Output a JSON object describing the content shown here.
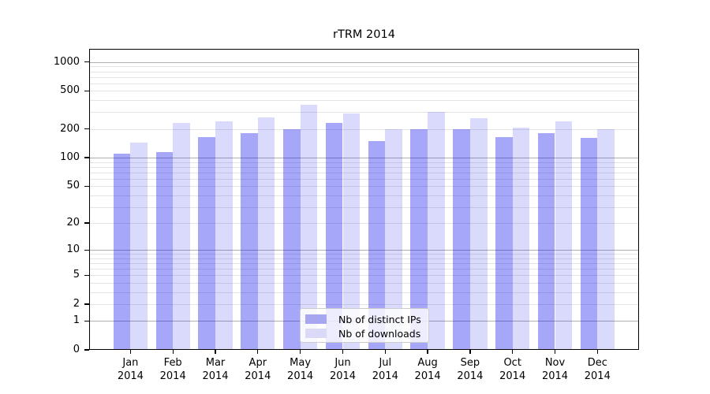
{
  "chart_data": {
    "type": "bar",
    "title": "rTRM 2014",
    "categories": [
      "Jan",
      "Feb",
      "Mar",
      "Apr",
      "May",
      "Jun",
      "Jul",
      "Aug",
      "Sep",
      "Oct",
      "Nov",
      "Dec"
    ],
    "category_year": "2014",
    "series": [
      {
        "name": "Nb of distinct IPs",
        "color": "#a6a6f1",
        "fill": "rgba(0,0,240,0.345)",
        "values": [
          110,
          115,
          165,
          180,
          200,
          230,
          150,
          200,
          200,
          165,
          180,
          160
        ]
      },
      {
        "name": "Nb of downloads",
        "color": "#dadaf8",
        "fill": "rgba(0,0,240,0.145)",
        "values": [
          145,
          230,
          240,
          265,
          360,
          290,
          200,
          300,
          260,
          205,
          240,
          200
        ]
      }
    ],
    "yscale": "log1p",
    "ytick_values": [
      1000,
      500,
      200,
      100,
      50,
      20,
      10,
      5,
      2,
      1,
      0
    ],
    "ylim": [
      0,
      1375
    ],
    "grid": "on",
    "legend_position": "lower-center",
    "colors": {
      "major_grid": "#b0b0b0",
      "minor_grid": "#e4e4e4",
      "axis": "#000000"
    }
  }
}
